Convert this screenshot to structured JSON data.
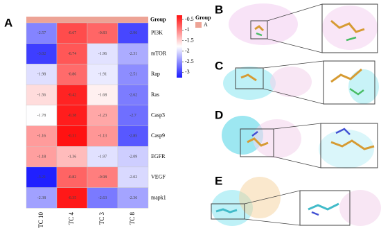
{
  "chart_data": {
    "type": "heatmap",
    "panel_labels": [
      "A",
      "B",
      "C",
      "D",
      "E"
    ],
    "rows": [
      "PI3K",
      "mTOR",
      "Rap",
      "Ras",
      "Casp3",
      "Casp9",
      "EGFR",
      "VEGF",
      "mapk1"
    ],
    "columns": [
      "TC 10",
      "TC 4",
      "TC 3",
      "TC 8"
    ],
    "values": [
      [
        -2.57,
        -0.67,
        -0.83,
        -2.96
      ],
      [
        -3.02,
        -0.74,
        -1.96,
        -2.31
      ],
      [
        -1.98,
        -0.86,
        -1.91,
        -2.51
      ],
      [
        -1.56,
        -0.42,
        -1.68,
        -2.62
      ],
      [
        -1.78,
        -0.38,
        -1.23,
        -2.7
      ],
      [
        -1.16,
        -0.31,
        -1.13,
        -2.85
      ],
      [
        -1.18,
        -1.36,
        -1.97,
        -2.09
      ],
      [
        -3.21,
        -0.82,
        -0.98,
        -2.02
      ],
      [
        -2.38,
        -0.35,
        -2.63,
        -2.36
      ]
    ],
    "colors": [
      "#1a1aff",
      "#ffffff",
      "#ff1010"
    ],
    "clim": [
      -3.25,
      -0.3
    ],
    "cticks": [
      -0.5,
      -1,
      -1.5,
      -2,
      -2.5,
      -3
    ],
    "group_title": "Group",
    "group_labels": [
      "A"
    ],
    "group_color": "#eda395"
  }
}
